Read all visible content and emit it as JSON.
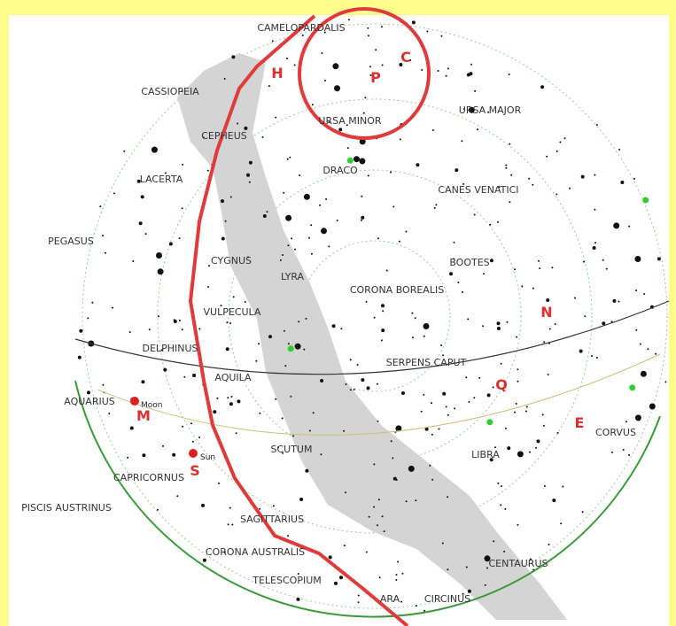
{
  "constellations": [
    "CAMELOPARDALIS",
    "CASSIOPEIA",
    "URSA MINOR",
    "URSA MAJOR",
    "CEPHEUS",
    "DRACO",
    "LACERTA",
    "CANES VENATICI",
    "PEGASUS",
    "CYGNUS",
    "LYRA",
    "BOOTES",
    "CORONA BOREALIS",
    "VULPECULA",
    "DELPHINUS",
    "SERPENS CAPUT",
    "AQUILA",
    "AQUARIUS",
    "CORVUS",
    "SCUTUM",
    "LIBRA",
    "CAPRICORNUS",
    "PISCIS AUSTRINUS",
    "SAGITTARIUS",
    "CORONA AUSTRALIS",
    "CENTAURUS",
    "TELESCOPIUM",
    "ARA",
    "CIRCINUS"
  ],
  "markers": [
    "H",
    "C",
    "P",
    "N",
    "Q",
    "M",
    "E",
    "S"
  ],
  "bodies": [
    "Moon",
    "Sun"
  ]
}
